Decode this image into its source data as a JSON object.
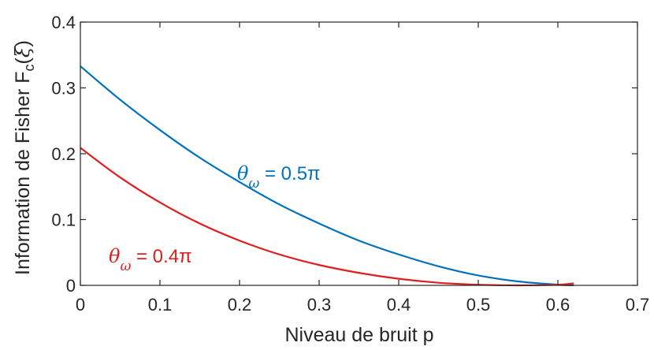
{
  "chart_data": {
    "type": "line",
    "title": "",
    "xlabel": "Niveau de bruit p",
    "ylabel": {
      "main": "Information de Fisher F",
      "sub": "c",
      "open": "(",
      "sym": "ξ",
      "close": ")"
    },
    "xlim": [
      0,
      0.7
    ],
    "ylim": [
      0,
      0.4
    ],
    "xticks": [
      0,
      0.1,
      0.2,
      0.3,
      0.4,
      0.5,
      0.6,
      0.7
    ],
    "xtick_labels": [
      "0",
      "0.1",
      "0.2",
      "0.3",
      "0.4",
      "0.5",
      "0.6",
      "0.7"
    ],
    "yticks": [
      0,
      0.1,
      0.2,
      0.3,
      0.4
    ],
    "ytick_labels": [
      "0",
      "0.1",
      "0.2",
      "0.3",
      "0.4"
    ],
    "grid": false,
    "series": [
      {
        "color": "#0072BD",
        "label": {
          "symbol": "θ",
          "sub": "ω",
          "text": " = 0.5π"
        },
        "x": [
          0,
          0.05,
          0.1,
          0.15,
          0.2,
          0.25,
          0.3,
          0.35,
          0.4,
          0.45,
          0.5,
          0.55,
          0.6,
          0.62
        ],
        "y": [
          0.333,
          0.282,
          0.236,
          0.194,
          0.157,
          0.123,
          0.094,
          0.068,
          0.047,
          0.029,
          0.015,
          0.006,
          0.001,
          0.0
        ]
      },
      {
        "color": "#E01E1E",
        "label": {
          "symbol": "θ",
          "sub": "ω",
          "text": " = 0.4π"
        },
        "x": [
          0,
          0.05,
          0.1,
          0.15,
          0.2,
          0.25,
          0.3,
          0.35,
          0.4,
          0.45,
          0.5,
          0.55,
          0.6,
          0.62
        ],
        "y": [
          0.209,
          0.164,
          0.126,
          0.094,
          0.068,
          0.047,
          0.031,
          0.019,
          0.01,
          0.004,
          0.001,
          0.0,
          0.001,
          0.003
        ]
      }
    ]
  }
}
